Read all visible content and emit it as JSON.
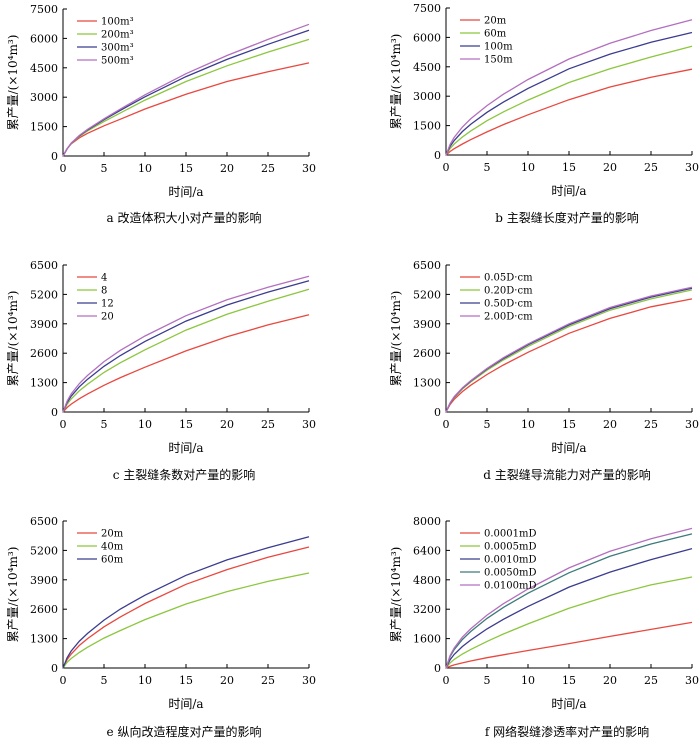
{
  "chart_data": [
    {
      "type": "line",
      "caption": "a  改造体积大小对产量的影响",
      "xlabel": "时间/a",
      "ylabel": "累产量/(×10⁴m³)",
      "xlim": [
        0,
        30
      ],
      "ylim": [
        0,
        7500
      ],
      "xticks": [
        "0",
        "5",
        "10",
        "15",
        "20",
        "25",
        "30"
      ],
      "yticks": [
        "0",
        "1500",
        "3000",
        "4500",
        "6000",
        "7500"
      ],
      "legend_position": "top-left",
      "series": [
        {
          "name": "100m³",
          "color": "#e8483f",
          "x": [
            0,
            0.5,
            1,
            2,
            3,
            5,
            7,
            10,
            15,
            20,
            25,
            30
          ],
          "y": [
            0,
            370,
            620,
            930,
            1160,
            1540,
            1880,
            2400,
            3150,
            3800,
            4300,
            4750
          ]
        },
        {
          "name": "200m³",
          "color": "#8cc63f",
          "x": [
            0,
            0.5,
            1,
            2,
            3,
            5,
            7,
            10,
            15,
            20,
            25,
            30
          ],
          "y": [
            0,
            360,
            640,
            1000,
            1280,
            1760,
            2200,
            2850,
            3800,
            4600,
            5300,
            5950
          ]
        },
        {
          "name": "300m³",
          "color": "#3b3c8f",
          "x": [
            0,
            0.5,
            1,
            2,
            3,
            5,
            7,
            10,
            15,
            20,
            25,
            30
          ],
          "y": [
            0,
            360,
            650,
            1030,
            1330,
            1850,
            2330,
            3020,
            4050,
            4930,
            5700,
            6420
          ]
        },
        {
          "name": "500m³",
          "color": "#b36fbf",
          "x": [
            0,
            0.5,
            1,
            2,
            3,
            5,
            7,
            10,
            15,
            20,
            25,
            30
          ],
          "y": [
            0,
            360,
            660,
            1050,
            1360,
            1900,
            2400,
            3120,
            4200,
            5130,
            5950,
            6720
          ]
        }
      ]
    },
    {
      "type": "line",
      "caption": "b  主裂缝长度对产量的影响",
      "xlabel": "时间/a",
      "ylabel": "累产量/(×10⁴m³)",
      "xlim": [
        0,
        30
      ],
      "ylim": [
        0,
        7500
      ],
      "xticks": [
        "0",
        "5",
        "10",
        "15",
        "20",
        "25",
        "30"
      ],
      "yticks": [
        "0",
        "1500",
        "3000",
        "4500",
        "6000",
        "7500"
      ],
      "legend_position": "top-left",
      "series": [
        {
          "name": "20m",
          "color": "#e8483f",
          "x": [
            0,
            0.5,
            1,
            2,
            3,
            5,
            7,
            10,
            15,
            20,
            25,
            30
          ],
          "y": [
            0,
            180,
            320,
            560,
            780,
            1180,
            1550,
            2050,
            2820,
            3470,
            3970,
            4380
          ]
        },
        {
          "name": "60m",
          "color": "#8cc63f",
          "x": [
            0,
            0.5,
            1,
            2,
            3,
            5,
            7,
            10,
            15,
            20,
            25,
            30
          ],
          "y": [
            0,
            330,
            560,
            920,
            1220,
            1750,
            2200,
            2800,
            3700,
            4400,
            5000,
            5550
          ]
        },
        {
          "name": "100m",
          "color": "#3b3c8f",
          "x": [
            0,
            0.5,
            1,
            2,
            3,
            5,
            7,
            10,
            15,
            20,
            25,
            30
          ],
          "y": [
            0,
            440,
            740,
            1200,
            1560,
            2180,
            2700,
            3400,
            4400,
            5150,
            5750,
            6250
          ]
        },
        {
          "name": "150m",
          "color": "#b36fbf",
          "x": [
            0,
            0.5,
            1,
            2,
            3,
            5,
            7,
            10,
            15,
            20,
            25,
            30
          ],
          "y": [
            0,
            540,
            900,
            1430,
            1840,
            2520,
            3100,
            3850,
            4900,
            5700,
            6350,
            6900
          ]
        }
      ]
    },
    {
      "type": "line",
      "caption": "c  主裂缝条数对产量的影响",
      "xlabel": "时间/a",
      "ylabel": "累产量/(×10⁴m³)",
      "xlim": [
        0,
        30
      ],
      "ylim": [
        0,
        6500
      ],
      "xticks": [
        "0",
        "5",
        "10",
        "15",
        "20",
        "25",
        "30"
      ],
      "yticks": [
        "0",
        "1300",
        "2600",
        "3900",
        "5200",
        "6500"
      ],
      "legend_position": "top-left",
      "series": [
        {
          "name": "4",
          "color": "#e8483f",
          "x": [
            0,
            0.5,
            1,
            2,
            3,
            5,
            7,
            10,
            15,
            20,
            25,
            30
          ],
          "y": [
            0,
            200,
            350,
            590,
            800,
            1180,
            1520,
            1980,
            2700,
            3330,
            3850,
            4300
          ]
        },
        {
          "name": "8",
          "color": "#8cc63f",
          "x": [
            0,
            0.5,
            1,
            2,
            3,
            5,
            7,
            10,
            15,
            20,
            25,
            30
          ],
          "y": [
            0,
            340,
            580,
            940,
            1230,
            1750,
            2180,
            2750,
            3620,
            4320,
            4900,
            5430
          ]
        },
        {
          "name": "12",
          "color": "#3b3c8f",
          "x": [
            0,
            0.5,
            1,
            2,
            3,
            5,
            7,
            10,
            15,
            20,
            25,
            30
          ],
          "y": [
            0,
            420,
            700,
            1120,
            1450,
            2020,
            2500,
            3120,
            4020,
            4730,
            5300,
            5800
          ]
        },
        {
          "name": "20",
          "color": "#b36fbf",
          "x": [
            0,
            0.5,
            1,
            2,
            3,
            5,
            7,
            10,
            15,
            20,
            25,
            30
          ],
          "y": [
            0,
            480,
            800,
            1260,
            1620,
            2230,
            2730,
            3360,
            4260,
            4960,
            5520,
            6000
          ]
        }
      ]
    },
    {
      "type": "line",
      "caption": "d  主裂缝导流能力对产量的影响",
      "xlabel": "时间/a",
      "ylabel": "累产量/(×10⁴m³)",
      "xlim": [
        0,
        30
      ],
      "ylim": [
        0,
        6500
      ],
      "xticks": [
        "0",
        "5",
        "10",
        "15",
        "20",
        "25",
        "30"
      ],
      "yticks": [
        "0",
        "1300",
        "2600",
        "3900",
        "5200",
        "6500"
      ],
      "legend_position": "top-left",
      "series": [
        {
          "name": "0.05D·cm",
          "color": "#e8483f",
          "x": [
            0,
            0.5,
            1,
            2,
            3,
            5,
            7,
            10,
            15,
            20,
            25,
            30
          ],
          "y": [
            0,
            330,
            560,
            900,
            1180,
            1660,
            2080,
            2640,
            3480,
            4140,
            4650,
            5000
          ]
        },
        {
          "name": "0.20D·cm",
          "color": "#8cc63f",
          "x": [
            0,
            0.5,
            1,
            2,
            3,
            5,
            7,
            10,
            15,
            20,
            25,
            30
          ],
          "y": [
            0,
            380,
            640,
            1020,
            1320,
            1850,
            2300,
            2900,
            3780,
            4500,
            5000,
            5400
          ]
        },
        {
          "name": "0.50D·cm",
          "color": "#3b3c8f",
          "x": [
            0,
            0.5,
            1,
            2,
            3,
            5,
            7,
            10,
            15,
            20,
            25,
            30
          ],
          "y": [
            0,
            395,
            665,
            1050,
            1360,
            1900,
            2360,
            2970,
            3850,
            4570,
            5080,
            5470
          ]
        },
        {
          "name": "2.00D·cm",
          "color": "#b36fbf",
          "x": [
            0,
            0.5,
            1,
            2,
            3,
            5,
            7,
            10,
            15,
            20,
            25,
            30
          ],
          "y": [
            0,
            405,
            680,
            1070,
            1380,
            1930,
            2400,
            3010,
            3900,
            4620,
            5130,
            5520
          ]
        }
      ]
    },
    {
      "type": "line",
      "caption": "e  纵向改造程度对产量的影响",
      "xlabel": "时间/a",
      "ylabel": "累产量/(×10⁴m³)",
      "xlim": [
        0,
        30
      ],
      "ylim": [
        0,
        6500
      ],
      "xticks": [
        "0",
        "5",
        "10",
        "15",
        "20",
        "25",
        "30"
      ],
      "yticks": [
        "0",
        "1300",
        "2600",
        "3900",
        "5200",
        "6500"
      ],
      "legend_position": "top-left",
      "series": [
        {
          "name": "20m",
          "color": "#e8483f",
          "x": [
            0,
            0.5,
            1,
            2,
            3,
            5,
            7,
            10,
            15,
            20,
            25,
            30
          ],
          "y": [
            0,
            370,
            620,
            1000,
            1300,
            1820,
            2260,
            2850,
            3700,
            4350,
            4900,
            5350
          ]
        },
        {
          "name": "40m",
          "color": "#8cc63f",
          "x": [
            0,
            0.5,
            1,
            2,
            3,
            5,
            7,
            10,
            15,
            20,
            25,
            30
          ],
          "y": [
            0,
            250,
            420,
            690,
            920,
            1320,
            1660,
            2140,
            2830,
            3380,
            3830,
            4200
          ]
        },
        {
          "name": "60m",
          "color": "#3b3c8f",
          "x": [
            0,
            0.5,
            1,
            2,
            3,
            5,
            7,
            10,
            15,
            20,
            25,
            30
          ],
          "y": [
            0,
            450,
            750,
            1190,
            1530,
            2120,
            2610,
            3220,
            4100,
            4780,
            5320,
            5800
          ]
        }
      ]
    },
    {
      "type": "line",
      "caption": "f  网络裂缝渗透率对产量的影响",
      "xlabel": "时间/a",
      "ylabel": "累产量/(×10⁴m³)",
      "xlim": [
        0,
        30
      ],
      "ylim": [
        0,
        8000
      ],
      "xticks": [
        "0",
        "5",
        "10",
        "15",
        "20",
        "25",
        "30"
      ],
      "yticks": [
        "0",
        "1600",
        "3200",
        "4800",
        "6400",
        "8000"
      ],
      "legend_position": "top-left",
      "series": [
        {
          "name": "0.0001mD",
          "color": "#e8483f",
          "x": [
            0,
            0.5,
            1,
            2,
            3,
            5,
            7,
            10,
            15,
            20,
            25,
            30
          ],
          "y": [
            0,
            100,
            170,
            280,
            380,
            560,
            720,
            950,
            1330,
            1720,
            2100,
            2480
          ]
        },
        {
          "name": "0.0005mD",
          "color": "#8cc63f",
          "x": [
            0,
            0.5,
            1,
            2,
            3,
            5,
            7,
            10,
            15,
            20,
            25,
            30
          ],
          "y": [
            0,
            280,
            470,
            760,
            1000,
            1450,
            1850,
            2400,
            3250,
            3950,
            4520,
            4950
          ]
        },
        {
          "name": "0.0010mD",
          "color": "#3b3c8f",
          "x": [
            0,
            0.5,
            1,
            2,
            3,
            5,
            7,
            10,
            15,
            20,
            25,
            30
          ],
          "y": [
            0,
            450,
            740,
            1170,
            1520,
            2130,
            2650,
            3350,
            4400,
            5220,
            5900,
            6500
          ]
        },
        {
          "name": "0.0050mD",
          "color": "#3d7a7a",
          "x": [
            0,
            0.5,
            1,
            2,
            3,
            5,
            7,
            10,
            15,
            20,
            25,
            30
          ],
          "y": [
            0,
            620,
            1000,
            1550,
            1980,
            2700,
            3300,
            4070,
            5180,
            6080,
            6750,
            7300
          ]
        },
        {
          "name": "0.0100mD",
          "color": "#b36fbf",
          "x": [
            0,
            0.5,
            1,
            2,
            3,
            5,
            7,
            10,
            15,
            20,
            25,
            30
          ],
          "y": [
            0,
            680,
            1090,
            1680,
            2130,
            2880,
            3500,
            4300,
            5450,
            6350,
            7030,
            7600
          ]
        }
      ]
    }
  ]
}
